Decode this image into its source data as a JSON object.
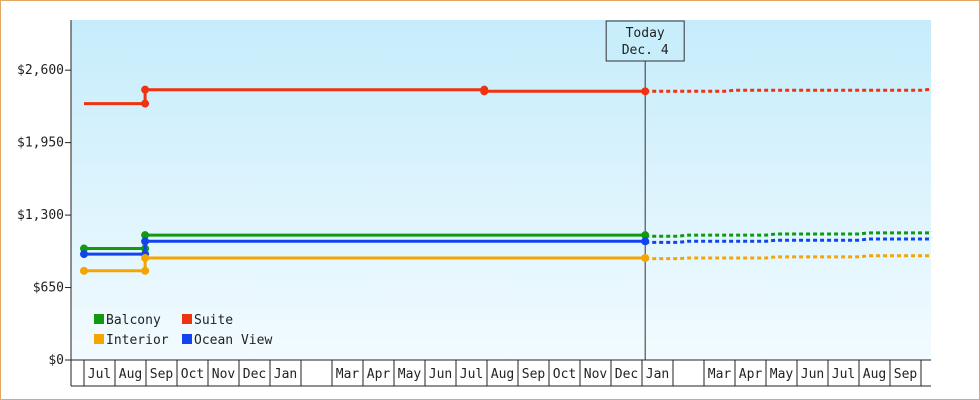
{
  "chart_data": {
    "type": "line",
    "y_ticks": [
      "$0",
      "$650",
      "$1,300",
      "$1,950",
      "$2,600"
    ],
    "ylim": [
      0,
      3050
    ],
    "x_start": "2014-06-01",
    "x_months": [
      "Jul",
      "Aug",
      "Sep",
      "Oct",
      "Nov",
      "Dec",
      "Jan",
      "",
      "Mar",
      "Apr",
      "May",
      "Jun",
      "Jul",
      "Aug",
      "Sep",
      "Oct",
      "Nov",
      "Dec",
      "Jan",
      "",
      "Mar",
      "Apr",
      "May",
      "Jun",
      "Jul",
      "Aug",
      "Sep"
    ],
    "today": {
      "label": "Today",
      "date": "Dec. 4",
      "x": "2015-12-04"
    },
    "legend": [
      {
        "name": "Balcony",
        "color": "#119911"
      },
      {
        "name": "Suite",
        "color": "#ee3311"
      },
      {
        "name": "Interior",
        "color": "#f5a500"
      },
      {
        "name": "Ocean View",
        "color": "#1144ee"
      }
    ],
    "series": [
      {
        "name": "Suite",
        "color": "#ee3311",
        "points": [
          [
            "2014-06-01",
            2300
          ],
          [
            "2014-07-31",
            2300
          ],
          [
            "2014-07-31",
            2425
          ],
          [
            "2015-06-29",
            2425
          ],
          [
            "2015-06-29",
            2410
          ],
          [
            "2015-12-04",
            2410
          ]
        ],
        "markers": [
          "2014-07-31",
          "2014-07-31",
          "2015-06-29",
          "2015-12-04"
        ],
        "forecast": [
          [
            "2015-12-04",
            2410
          ],
          [
            "2016-02-20",
            2410
          ],
          [
            "2016-03-01",
            2420
          ],
          [
            "2016-09-01",
            2420
          ],
          [
            "2016-10-01",
            2430
          ],
          [
            "2016-12-31",
            2430
          ]
        ]
      },
      {
        "name": "Balcony",
        "color": "#119911",
        "points": [
          [
            "2014-06-01",
            1000
          ],
          [
            "2014-07-31",
            1000
          ],
          [
            "2014-07-31",
            1120
          ],
          [
            "2015-12-04",
            1120
          ]
        ],
        "markers": [
          "2014-06-01",
          "2014-07-31",
          "2014-07-31",
          "2015-12-04"
        ],
        "forecast": [
          [
            "2015-12-04",
            1110
          ],
          [
            "2016-01-05",
            1110
          ],
          [
            "2016-01-15",
            1120
          ],
          [
            "2016-04-01",
            1120
          ],
          [
            "2016-04-10",
            1130
          ],
          [
            "2016-07-01",
            1130
          ],
          [
            "2016-07-10",
            1140
          ],
          [
            "2016-10-01",
            1140
          ],
          [
            "2016-10-10",
            1150
          ],
          [
            "2016-12-31",
            1150
          ]
        ]
      },
      {
        "name": "Ocean View",
        "color": "#1144ee",
        "points": [
          [
            "2014-06-01",
            950
          ],
          [
            "2014-07-31",
            950
          ],
          [
            "2014-07-31",
            1065
          ],
          [
            "2015-12-04",
            1065
          ]
        ],
        "markers": [
          "2014-06-01",
          "2014-07-31",
          "2014-07-31",
          "2015-12-04"
        ],
        "forecast": [
          [
            "2015-12-04",
            1055
          ],
          [
            "2016-01-05",
            1055
          ],
          [
            "2016-01-15",
            1065
          ],
          [
            "2016-04-01",
            1065
          ],
          [
            "2016-04-10",
            1075
          ],
          [
            "2016-07-01",
            1075
          ],
          [
            "2016-07-10",
            1085
          ],
          [
            "2016-10-01",
            1085
          ],
          [
            "2016-10-10",
            1095
          ],
          [
            "2016-12-31",
            1095
          ]
        ]
      },
      {
        "name": "Interior",
        "color": "#f5a500",
        "points": [
          [
            "2014-06-01",
            800
          ],
          [
            "2014-07-31",
            800
          ],
          [
            "2014-07-31",
            915
          ],
          [
            "2015-12-04",
            915
          ]
        ],
        "markers": [
          "2014-06-01",
          "2014-07-31",
          "2015-12-04"
        ],
        "forecast": [
          [
            "2015-12-04",
            910
          ],
          [
            "2016-01-05",
            910
          ],
          [
            "2016-01-15",
            915
          ],
          [
            "2016-04-01",
            915
          ],
          [
            "2016-04-10",
            925
          ],
          [
            "2016-07-01",
            925
          ],
          [
            "2016-07-10",
            935
          ],
          [
            "2016-10-01",
            935
          ],
          [
            "2016-10-10",
            945
          ],
          [
            "2016-12-31",
            945
          ]
        ]
      }
    ]
  }
}
